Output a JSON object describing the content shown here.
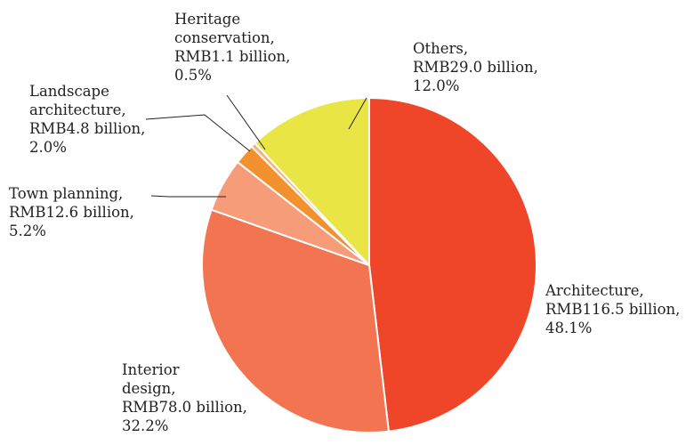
{
  "chart_data": {
    "type": "pie",
    "title": "",
    "start_angle_deg": 0,
    "direction": "clockwise",
    "slices": [
      {
        "name": "Architecture",
        "value": 116.5,
        "percent": 48.1,
        "label": [
          "Architecture,",
          "RMB116.5 billion,",
          "48.1%"
        ],
        "color": "#ef462a"
      },
      {
        "name": "Interior design",
        "value": 78.0,
        "percent": 32.2,
        "label": [
          "Interior",
          "design,",
          "RMB78.0 billion,",
          "32.2%"
        ],
        "color": "#f37451"
      },
      {
        "name": "Town planning",
        "value": 12.6,
        "percent": 5.2,
        "label": [
          "Town planning,",
          "RMB12.6 billion,",
          "5.2%"
        ],
        "color": "#f79c79"
      },
      {
        "name": "Landscape architecture",
        "value": 4.8,
        "percent": 2.0,
        "label": [
          "Landscape",
          "architecture,",
          "RMB4.8 billion,",
          "2.0%"
        ],
        "color": "#f2922f"
      },
      {
        "name": "Heritage conservation",
        "value": 1.1,
        "percent": 0.5,
        "label": [
          "Heritage",
          "conservation,",
          "RMB1.1 billion,",
          "0.5%"
        ],
        "color": "#f4b183"
      },
      {
        "name": "Others",
        "value": 29.0,
        "percent": 12.0,
        "label": [
          "Others,",
          "RMB29.0 billion,",
          "12.0%"
        ],
        "color": "#e8e545"
      }
    ]
  }
}
